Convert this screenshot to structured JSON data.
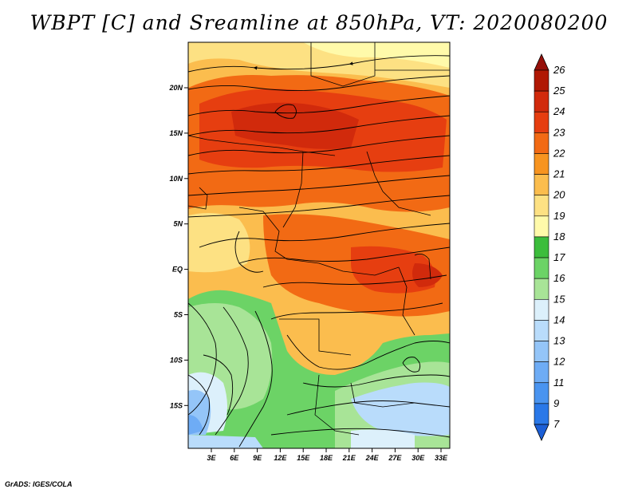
{
  "title": "WBPT [C] and Sreamline at 850hPa, VT: 2020080200",
  "footer": "GrADS: IGES/COLA",
  "map": {
    "lat_ticks": [
      "20N",
      "15N",
      "10N",
      "5N",
      "EQ",
      "5S",
      "10S",
      "15S"
    ],
    "lon_ticks": [
      "3E",
      "6E",
      "9E",
      "12E",
      "15E",
      "18E",
      "21E",
      "24E",
      "27E",
      "30E",
      "33E"
    ]
  },
  "colorbar": {
    "levels": [
      "7",
      "9",
      "11",
      "12",
      "13",
      "14",
      "15",
      "16",
      "17",
      "18",
      "19",
      "20",
      "21",
      "22",
      "23",
      "24",
      "25",
      "26"
    ],
    "colors": [
      "#1c5fd6",
      "#2a78e8",
      "#4a94f0",
      "#6eacf5",
      "#94c5f8",
      "#b9dcfb",
      "#dcf0fb",
      "#a8e497",
      "#6cd366",
      "#3cbd3c",
      "#fffaaa",
      "#fde183",
      "#fbbd4e",
      "#f79420",
      "#f26a14",
      "#e63e10",
      "#d12a0c",
      "#b01804",
      "#96100a"
    ]
  }
}
